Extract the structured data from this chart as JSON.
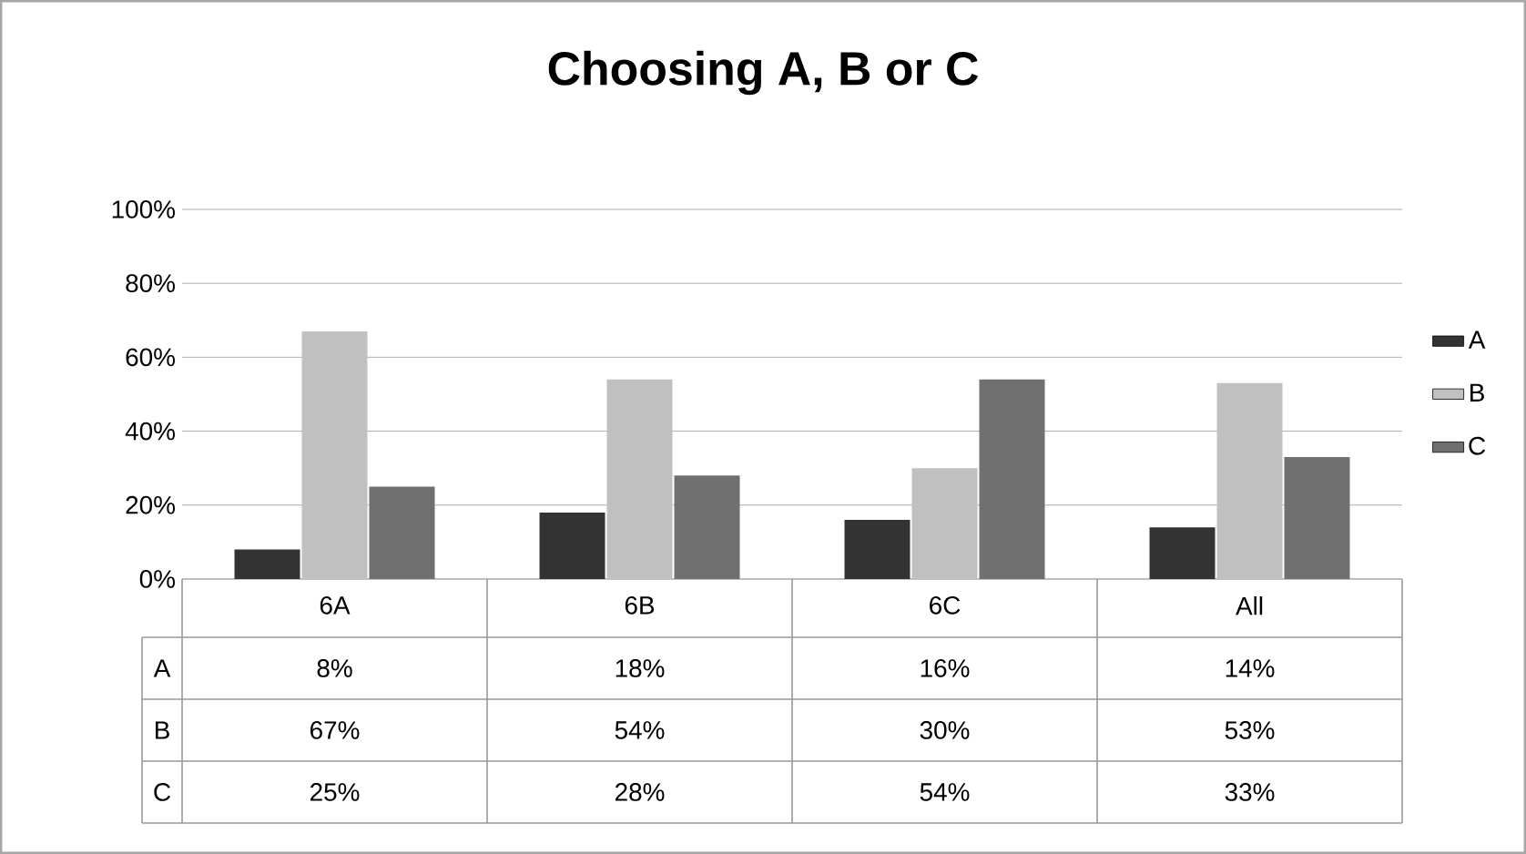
{
  "chart_data": {
    "type": "bar",
    "title": "Choosing A, B or C",
    "categories": [
      "6A",
      "6B",
      "6C",
      "All"
    ],
    "series": [
      {
        "name": "A",
        "color": "#333333",
        "values": [
          8,
          18,
          16,
          14
        ],
        "value_labels": [
          "8%",
          "18%",
          "16%",
          "14%"
        ]
      },
      {
        "name": "B",
        "color": "#c0c0c0",
        "values": [
          67,
          54,
          30,
          53
        ],
        "value_labels": [
          "67%",
          "54%",
          "30%",
          "53%"
        ]
      },
      {
        "name": "C",
        "color": "#707070",
        "values": [
          25,
          28,
          54,
          33
        ],
        "value_labels": [
          "25%",
          "28%",
          "54%",
          "33%"
        ]
      }
    ],
    "ylim": [
      0,
      100
    ],
    "yticks": [
      {
        "value": 0,
        "label": "0%"
      },
      {
        "value": 20,
        "label": "20%"
      },
      {
        "value": 40,
        "label": "40%"
      },
      {
        "value": 60,
        "label": "60%"
      },
      {
        "value": 80,
        "label": "80%"
      },
      {
        "value": 100,
        "label": "100%"
      }
    ],
    "grid": "y",
    "legend": "right"
  }
}
